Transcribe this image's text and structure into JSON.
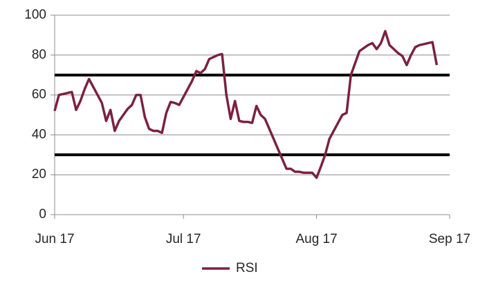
{
  "chart_data": {
    "type": "line",
    "categories": [
      "Jun 17",
      null,
      null,
      null,
      null,
      null,
      null,
      null,
      null,
      null,
      null,
      null,
      null,
      null,
      null,
      null,
      null,
      null,
      null,
      null,
      null,
      null,
      null,
      null,
      null,
      null,
      null,
      null,
      null,
      null,
      "Jul 17",
      null,
      null,
      null,
      null,
      null,
      null,
      null,
      null,
      null,
      null,
      null,
      null,
      null,
      null,
      null,
      null,
      null,
      null,
      null,
      null,
      null,
      null,
      null,
      null,
      null,
      null,
      null,
      null,
      null,
      null,
      "Aug 17",
      null,
      null,
      null,
      null,
      null,
      null,
      null,
      null,
      null,
      null,
      null,
      null,
      null,
      null,
      null,
      null,
      null,
      null,
      null,
      null,
      null,
      null,
      null,
      null,
      null,
      null,
      null,
      null,
      null,
      null,
      "Sep 17"
    ],
    "series": [
      {
        "name": "RSI",
        "color": "#7b2141",
        "values": [
          52,
          60,
          60.5,
          61,
          61.5,
          52.5,
          57,
          63,
          68,
          64,
          60,
          56,
          47,
          52.5,
          42,
          47,
          50,
          53,
          55,
          60,
          60,
          49,
          43,
          42,
          42,
          41,
          51,
          56.5,
          56,
          55,
          59,
          63,
          67,
          72,
          71,
          73,
          78,
          79,
          80,
          80.5,
          60,
          48,
          57,
          47,
          46.5,
          46.5,
          46,
          54.5,
          50,
          48,
          43,
          38,
          33,
          28,
          23,
          23,
          21.5,
          21.5,
          21,
          21,
          21,
          18.5,
          24,
          30,
          38,
          42,
          46,
          50,
          51,
          70,
          76,
          82,
          83.5,
          85,
          86,
          83,
          86,
          92,
          85,
          83,
          81,
          79.5,
          75,
          80,
          84,
          85,
          85.5,
          86,
          86.5,
          75,
          null,
          null,
          null
        ]
      }
    ],
    "reference_lines": [
      70,
      30
    ],
    "ylim": [
      0,
      100
    ],
    "yticks": [
      0,
      20,
      40,
      60,
      80,
      100
    ],
    "grid": true,
    "legend": "bottom"
  }
}
